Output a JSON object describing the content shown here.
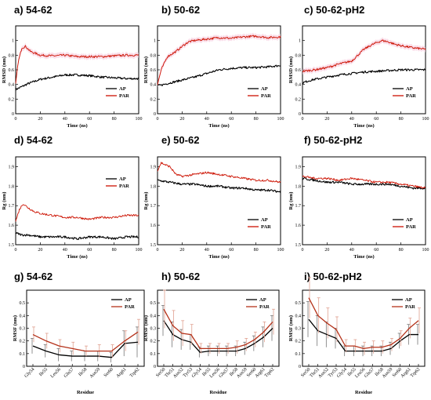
{
  "chart_data": [
    {
      "id": "a",
      "type": "line",
      "title": "a) 54-62",
      "xlabel": "Time (ns)",
      "ylabel": "RMSD (nm)",
      "xlim": [
        0,
        100
      ],
      "ylim": [
        0,
        1.2
      ],
      "xticks": [
        0,
        20,
        40,
        60,
        80,
        100
      ],
      "yticks": [
        0,
        0.2,
        0.4,
        0.6,
        0.8,
        1
      ],
      "legend_position": "lower-right",
      "band": true,
      "series": [
        {
          "name": "AP",
          "color": "#000000",
          "shape": [
            [
              0,
              0.33
            ],
            [
              5,
              0.37
            ],
            [
              10,
              0.41
            ],
            [
              15,
              0.44
            ],
            [
              20,
              0.47
            ],
            [
              30,
              0.5
            ],
            [
              40,
              0.53
            ],
            [
              50,
              0.53
            ],
            [
              60,
              0.52
            ],
            [
              70,
              0.5
            ],
            [
              80,
              0.49
            ],
            [
              90,
              0.48
            ],
            [
              100,
              0.48
            ]
          ]
        },
        {
          "name": "PAR",
          "color": "#cc1100",
          "shape": [
            [
              0,
              0.4
            ],
            [
              2,
              0.7
            ],
            [
              5,
              0.9
            ],
            [
              8,
              0.92
            ],
            [
              12,
              0.85
            ],
            [
              20,
              0.8
            ],
            [
              30,
              0.79
            ],
            [
              40,
              0.8
            ],
            [
              50,
              0.78
            ],
            [
              60,
              0.78
            ],
            [
              70,
              0.78
            ],
            [
              80,
              0.79
            ],
            [
              90,
              0.8
            ],
            [
              100,
              0.8
            ]
          ]
        }
      ]
    },
    {
      "id": "b",
      "type": "line",
      "title": "b) 50-62",
      "xlabel": "Time (ns)",
      "ylabel": "RMSD (nm)",
      "xlim": [
        0,
        100
      ],
      "ylim": [
        0,
        1.2
      ],
      "xticks": [
        0,
        20,
        40,
        60,
        80,
        100
      ],
      "yticks": [
        0,
        0.2,
        0.4,
        0.6,
        0.8,
        1
      ],
      "legend_position": "lower-right",
      "band": true,
      "series": [
        {
          "name": "AP",
          "color": "#000000",
          "shape": [
            [
              0,
              0.38
            ],
            [
              5,
              0.4
            ],
            [
              10,
              0.42
            ],
            [
              15,
              0.44
            ],
            [
              20,
              0.46
            ],
            [
              30,
              0.5
            ],
            [
              40,
              0.55
            ],
            [
              50,
              0.6
            ],
            [
              60,
              0.62
            ],
            [
              70,
              0.63
            ],
            [
              80,
              0.63
            ],
            [
              90,
              0.64
            ],
            [
              100,
              0.66
            ]
          ]
        },
        {
          "name": "PAR",
          "color": "#cc1100",
          "shape": [
            [
              0,
              0.4
            ],
            [
              3,
              0.6
            ],
            [
              8,
              0.78
            ],
            [
              15,
              0.85
            ],
            [
              20,
              0.92
            ],
            [
              25,
              0.98
            ],
            [
              30,
              1.0
            ],
            [
              40,
              1.02
            ],
            [
              50,
              1.04
            ],
            [
              60,
              1.03
            ],
            [
              70,
              1.05
            ],
            [
              80,
              1.06
            ],
            [
              90,
              1.04
            ],
            [
              100,
              1.05
            ]
          ]
        }
      ]
    },
    {
      "id": "c",
      "type": "line",
      "title": "c) 50-62-pH2",
      "xlabel": "Time (ns)",
      "ylabel": "RMSD (nm)",
      "xlim": [
        0,
        100
      ],
      "ylim": [
        0,
        1.2
      ],
      "xticks": [
        0,
        20,
        40,
        60,
        80,
        100
      ],
      "yticks": [
        0,
        0.2,
        0.4,
        0.6,
        0.8,
        1
      ],
      "legend_position": "lower-right",
      "band": true,
      "series": [
        {
          "name": "AP",
          "color": "#000000",
          "shape": [
            [
              0,
              0.42
            ],
            [
              5,
              0.45
            ],
            [
              10,
              0.47
            ],
            [
              20,
              0.5
            ],
            [
              30,
              0.53
            ],
            [
              40,
              0.55
            ],
            [
              50,
              0.57
            ],
            [
              60,
              0.58
            ],
            [
              70,
              0.59
            ],
            [
              80,
              0.6
            ],
            [
              90,
              0.6
            ],
            [
              100,
              0.6
            ]
          ]
        },
        {
          "name": "PAR",
          "color": "#cc1100",
          "shape": [
            [
              0,
              0.58
            ],
            [
              10,
              0.6
            ],
            [
              20,
              0.63
            ],
            [
              30,
              0.68
            ],
            [
              40,
              0.72
            ],
            [
              45,
              0.8
            ],
            [
              50,
              0.88
            ],
            [
              55,
              0.93
            ],
            [
              60,
              0.97
            ],
            [
              65,
              1.0
            ],
            [
              70,
              0.98
            ],
            [
              75,
              0.95
            ],
            [
              80,
              0.93
            ],
            [
              90,
              0.9
            ],
            [
              100,
              0.88
            ]
          ]
        }
      ]
    },
    {
      "id": "d",
      "type": "line",
      "title": "d) 54-62",
      "xlabel": "Time (ns)",
      "ylabel": "Rg (nm)",
      "xlim": [
        0,
        100
      ],
      "ylim": [
        1.5,
        1.95
      ],
      "xticks": [
        0,
        20,
        40,
        60,
        80,
        100
      ],
      "yticks": [
        1.5,
        1.6,
        1.7,
        1.8,
        1.9
      ],
      "legend_position": "upper-right",
      "band": false,
      "series": [
        {
          "name": "AP",
          "color": "#000000",
          "shape": [
            [
              0,
              1.56
            ],
            [
              5,
              1.55
            ],
            [
              10,
              1.55
            ],
            [
              20,
              1.54
            ],
            [
              30,
              1.54
            ],
            [
              40,
              1.54
            ],
            [
              50,
              1.53
            ],
            [
              60,
              1.54
            ],
            [
              70,
              1.54
            ],
            [
              80,
              1.53
            ],
            [
              90,
              1.54
            ],
            [
              100,
              1.54
            ]
          ]
        },
        {
          "name": "PAR",
          "color": "#cc1100",
          "shape": [
            [
              0,
              1.62
            ],
            [
              3,
              1.68
            ],
            [
              6,
              1.71
            ],
            [
              10,
              1.69
            ],
            [
              15,
              1.67
            ],
            [
              20,
              1.66
            ],
            [
              30,
              1.65
            ],
            [
              40,
              1.64
            ],
            [
              50,
              1.64
            ],
            [
              60,
              1.63
            ],
            [
              70,
              1.64
            ],
            [
              80,
              1.64
            ],
            [
              90,
              1.65
            ],
            [
              100,
              1.65
            ]
          ]
        }
      ]
    },
    {
      "id": "e",
      "type": "line",
      "title": "e) 50-62",
      "xlabel": "Time (ns)",
      "ylabel": "Rg (nm)",
      "xlim": [
        0,
        100
      ],
      "ylim": [
        1.5,
        1.95
      ],
      "xticks": [
        0,
        20,
        40,
        60,
        80,
        100
      ],
      "yticks": [
        1.5,
        1.6,
        1.7,
        1.8,
        1.9
      ],
      "legend_position": "lower-right",
      "band": false,
      "series": [
        {
          "name": "AP",
          "color": "#000000",
          "shape": [
            [
              0,
              1.83
            ],
            [
              10,
              1.82
            ],
            [
              20,
              1.81
            ],
            [
              30,
              1.81
            ],
            [
              40,
              1.8
            ],
            [
              50,
              1.8
            ],
            [
              60,
              1.79
            ],
            [
              70,
              1.79
            ],
            [
              80,
              1.78
            ],
            [
              90,
              1.78
            ],
            [
              100,
              1.77
            ]
          ]
        },
        {
          "name": "PAR",
          "color": "#cc1100",
          "shape": [
            [
              0,
              1.88
            ],
            [
              3,
              1.92
            ],
            [
              6,
              1.91
            ],
            [
              10,
              1.9
            ],
            [
              15,
              1.86
            ],
            [
              20,
              1.85
            ],
            [
              30,
              1.86
            ],
            [
              40,
              1.87
            ],
            [
              50,
              1.86
            ],
            [
              60,
              1.85
            ],
            [
              70,
              1.84
            ],
            [
              80,
              1.83
            ],
            [
              90,
              1.83
            ],
            [
              100,
              1.82
            ]
          ]
        }
      ]
    },
    {
      "id": "f",
      "type": "line",
      "title": "f) 50-62-pH2",
      "xlabel": "Time (ns)",
      "ylabel": "Rg (nm)",
      "xlim": [
        0,
        100
      ],
      "ylim": [
        1.5,
        1.95
      ],
      "xticks": [
        0,
        20,
        40,
        60,
        80,
        100
      ],
      "yticks": [
        1.5,
        1.6,
        1.7,
        1.8,
        1.9
      ],
      "legend_position": "lower-right",
      "band": false,
      "series": [
        {
          "name": "AP",
          "color": "#000000",
          "shape": [
            [
              0,
              1.84
            ],
            [
              10,
              1.83
            ],
            [
              20,
              1.82
            ],
            [
              30,
              1.82
            ],
            [
              40,
              1.81
            ],
            [
              50,
              1.81
            ],
            [
              60,
              1.81
            ],
            [
              70,
              1.81
            ],
            [
              80,
              1.8
            ],
            [
              90,
              1.79
            ],
            [
              100,
              1.79
            ]
          ]
        },
        {
          "name": "PAR",
          "color": "#cc1100",
          "shape": [
            [
              0,
              1.85
            ],
            [
              10,
              1.84
            ],
            [
              20,
              1.84
            ],
            [
              30,
              1.83
            ],
            [
              40,
              1.84
            ],
            [
              50,
              1.83
            ],
            [
              60,
              1.82
            ],
            [
              70,
              1.82
            ],
            [
              80,
              1.81
            ],
            [
              90,
              1.8
            ],
            [
              100,
              1.79
            ]
          ]
        }
      ]
    },
    {
      "id": "g",
      "type": "line",
      "title": "g) 54-62",
      "xlabel": "Residue",
      "ylabel": "RMSF (nm)",
      "ylim": [
        0,
        0.6
      ],
      "yticks": [
        0,
        0.1,
        0.2,
        0.3,
        0.4,
        0.5
      ],
      "legend_position": "upper-right",
      "categories": [
        "Gly54",
        "Ile55",
        "Leu56",
        "Gln57",
        "Ile58",
        "Asn59",
        "Ser60",
        "Arg61",
        "Trp62"
      ],
      "series": [
        {
          "name": "AP",
          "color": "#000000",
          "values": [
            0.16,
            0.12,
            0.09,
            0.08,
            0.08,
            0.08,
            0.07,
            0.18,
            0.19
          ],
          "errors": [
            0.06,
            0.05,
            0.05,
            0.04,
            0.04,
            0.04,
            0.04,
            0.1,
            0.12
          ]
        },
        {
          "name": "PAR",
          "color": "#b5321a",
          "values": [
            0.25,
            0.2,
            0.16,
            0.14,
            0.12,
            0.12,
            0.12,
            0.2,
            0.27
          ],
          "errors": [
            0.06,
            0.06,
            0.05,
            0.05,
            0.04,
            0.05,
            0.05,
            0.08,
            0.1
          ]
        }
      ]
    },
    {
      "id": "h",
      "type": "line",
      "title": "h) 50-62",
      "xlabel": "Residue",
      "ylabel": "RMSF (nm)",
      "ylim": [
        0,
        0.6
      ],
      "yticks": [
        0,
        0.1,
        0.2,
        0.3,
        0.4,
        0.5
      ],
      "legend_position": "upper-right",
      "categories": [
        "Ser50",
        "Thr51",
        "Asn52",
        "Tyr53",
        "Gly54",
        "Ile55",
        "Leu56",
        "Gln57",
        "Ile58",
        "Asn59",
        "Ser60",
        "Arg61",
        "Trp62"
      ],
      "series": [
        {
          "name": "AP",
          "color": "#000000",
          "values": [
            0.36,
            0.25,
            0.21,
            0.19,
            0.11,
            0.12,
            0.12,
            0.12,
            0.12,
            0.14,
            0.18,
            0.23,
            0.3
          ],
          "errors": [
            0.12,
            0.1,
            0.08,
            0.06,
            0.04,
            0.04,
            0.04,
            0.04,
            0.04,
            0.05,
            0.06,
            0.08,
            0.1
          ]
        },
        {
          "name": "PAR",
          "color": "#b5321a",
          "values": [
            0.45,
            0.32,
            0.26,
            0.25,
            0.14,
            0.14,
            0.14,
            0.14,
            0.15,
            0.17,
            0.21,
            0.27,
            0.35
          ],
          "errors": [
            0.15,
            0.12,
            0.1,
            0.08,
            0.04,
            0.04,
            0.04,
            0.04,
            0.05,
            0.05,
            0.06,
            0.08,
            0.1
          ]
        }
      ]
    },
    {
      "id": "i",
      "type": "line",
      "title": "i) 50-62-pH2",
      "xlabel": "Residue",
      "ylabel": "RMSF (nm)",
      "ylim": [
        0,
        0.6
      ],
      "yticks": [
        0,
        0.1,
        0.2,
        0.3,
        0.4,
        0.5
      ],
      "legend_position": "upper-right",
      "categories": [
        "Ser50",
        "Thr51",
        "Asn52",
        "Tyr53",
        "Gly54",
        "Ile55",
        "Leu56",
        "Gln57",
        "Ile58",
        "Asn59",
        "Ser60",
        "Arg61",
        "Trp62"
      ],
      "series": [
        {
          "name": "AP",
          "color": "#000000",
          "values": [
            0.37,
            0.28,
            0.25,
            0.22,
            0.12,
            0.12,
            0.12,
            0.12,
            0.12,
            0.14,
            0.2,
            0.25,
            0.25
          ],
          "errors": [
            0.14,
            0.12,
            0.1,
            0.08,
            0.04,
            0.04,
            0.04,
            0.04,
            0.04,
            0.05,
            0.06,
            0.08,
            0.08
          ]
        },
        {
          "name": "PAR",
          "color": "#b5321a",
          "values": [
            0.54,
            0.4,
            0.34,
            0.29,
            0.16,
            0.16,
            0.14,
            0.15,
            0.15,
            0.17,
            0.22,
            0.3,
            0.36
          ],
          "errors": [
            0.16,
            0.14,
            0.12,
            0.1,
            0.05,
            0.05,
            0.05,
            0.05,
            0.05,
            0.05,
            0.06,
            0.08,
            0.1
          ]
        }
      ]
    }
  ]
}
